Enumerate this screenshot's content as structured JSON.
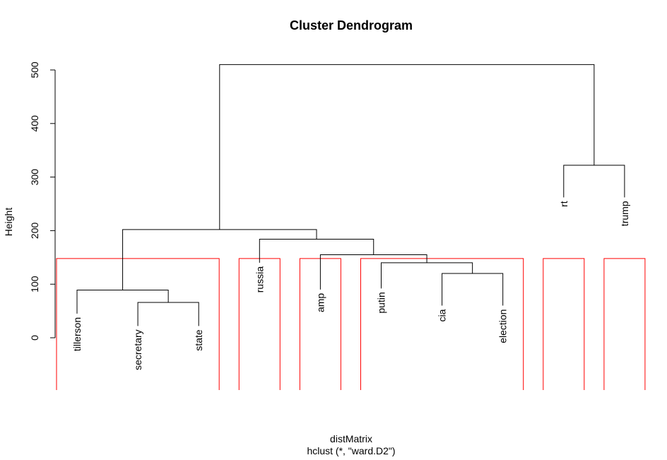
{
  "chart_data": {
    "type": "dendrogram",
    "title": "Cluster Dendrogram",
    "xlabel": "distMatrix",
    "sublabel": "hclust (*, \"ward.D2\")",
    "ylabel": "Height",
    "ylim": [
      -100,
      540
    ],
    "y_ticks": [
      0,
      100,
      200,
      300,
      400,
      500
    ],
    "y_tick_labels": [
      "0",
      "100",
      "200",
      "300",
      "400",
      "500"
    ],
    "leaves": [
      "tillerson",
      "secretary",
      "state",
      "russia",
      "amp",
      "putin",
      "cia",
      "election",
      "rt",
      "trump"
    ],
    "leaf_label_tops": [
      45,
      22,
      22,
      140,
      90,
      92,
      60,
      60,
      262,
      262
    ],
    "merges": [
      {
        "left": "secretary",
        "right": "state",
        "height": 66
      },
      {
        "left": "tillerson",
        "right": [
          "secretary",
          "state"
        ],
        "height": 89
      },
      {
        "left": "cia",
        "right": "election",
        "height": 120
      },
      {
        "left": "putin",
        "right": [
          "cia",
          "election"
        ],
        "height": 140
      },
      {
        "left": "amp",
        "right": [
          "putin",
          "cia",
          "election"
        ],
        "height": 155
      },
      {
        "left": "russia",
        "right": [
          "amp",
          "putin",
          "cia",
          "election"
        ],
        "height": 184
      },
      {
        "left": [
          "tillerson",
          "secretary",
          "state"
        ],
        "right": [
          "russia",
          "amp",
          "putin",
          "cia",
          "election"
        ],
        "height": 202
      },
      {
        "left": "rt",
        "right": "trump",
        "height": 322
      },
      {
        "left": [
          "tillerson",
          "secretary",
          "state",
          "russia",
          "amp",
          "putin",
          "cia",
          "election"
        ],
        "right": [
          "rt",
          "trump"
        ],
        "height": 510
      }
    ],
    "cluster_boxes": {
      "color": "#ff0000",
      "top_height": 148,
      "groups": [
        [
          "tillerson",
          "secretary",
          "state"
        ],
        [
          "russia"
        ],
        [
          "amp"
        ],
        [
          "putin",
          "cia",
          "election"
        ],
        [
          "rt"
        ],
        [
          "trump"
        ]
      ]
    },
    "line_color": "#000000"
  }
}
